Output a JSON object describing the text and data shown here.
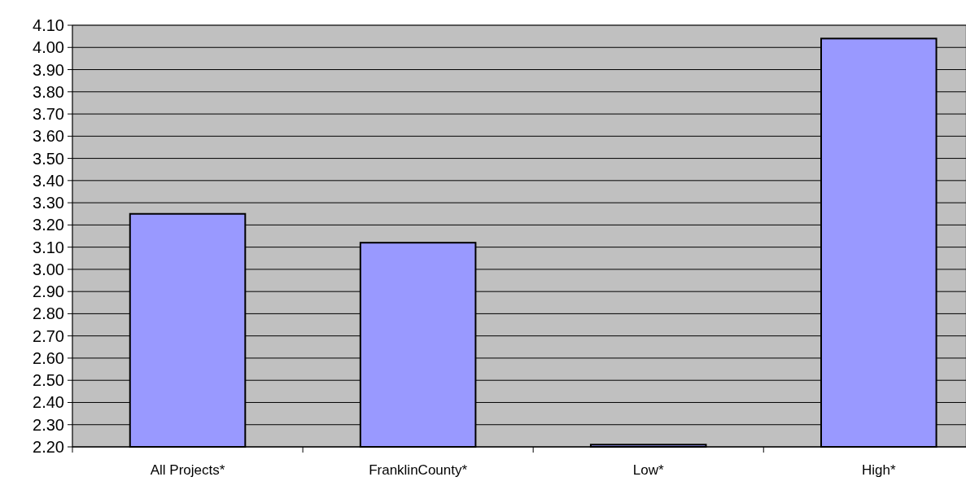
{
  "chart_data": {
    "type": "bar",
    "categories": [
      "All Projects*",
      "FranklinCounty*",
      "Low*",
      "High*"
    ],
    "values": [
      3.25,
      3.12,
      2.21,
      4.04
    ],
    "color": "#9999ff",
    "ylim": [
      2.2,
      4.1
    ],
    "yticks": [
      {
        "value": 2.2,
        "label": "2.20"
      },
      {
        "value": 2.3,
        "label": "2.30"
      },
      {
        "value": 2.4,
        "label": "2.40"
      },
      {
        "value": 2.5,
        "label": "2.50"
      },
      {
        "value": 2.6,
        "label": "2.60"
      },
      {
        "value": 2.7,
        "label": "2.70"
      },
      {
        "value": 2.8,
        "label": "2.80"
      },
      {
        "value": 2.9,
        "label": "2.90"
      },
      {
        "value": 3.0,
        "label": "3.00"
      },
      {
        "value": 3.1,
        "label": "3.10"
      },
      {
        "value": 3.2,
        "label": "3.20"
      },
      {
        "value": 3.3,
        "label": "3.30"
      },
      {
        "value": 3.4,
        "label": "3.40"
      },
      {
        "value": 3.5,
        "label": "3.50"
      },
      {
        "value": 3.6,
        "label": "3.60"
      },
      {
        "value": 3.7,
        "label": "3.70"
      },
      {
        "value": 3.8,
        "label": "3.80"
      },
      {
        "value": 3.9,
        "label": "3.90"
      },
      {
        "value": 4.0,
        "label": "4.00"
      },
      {
        "value": 4.1,
        "label": "4.10"
      }
    ],
    "grid": "y"
  }
}
